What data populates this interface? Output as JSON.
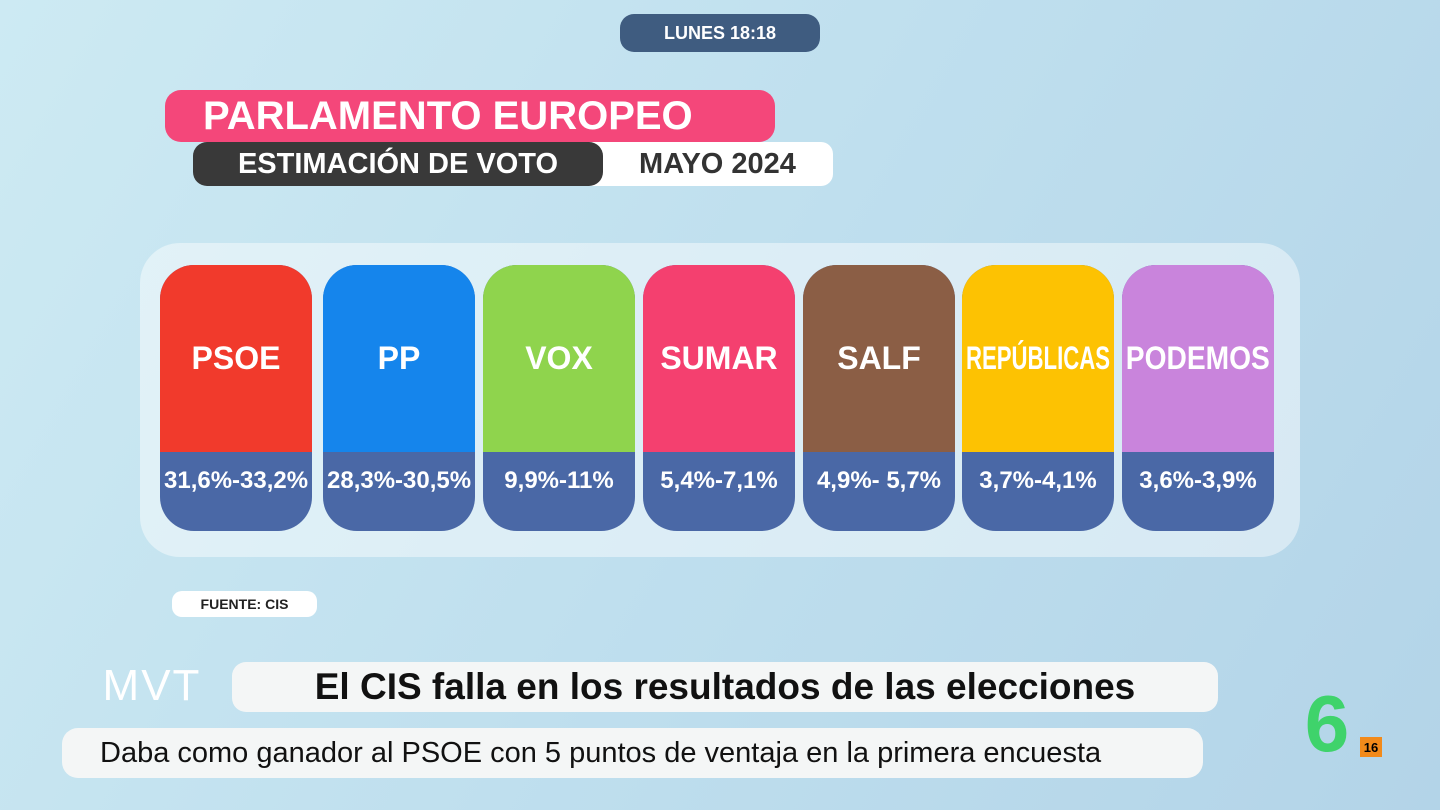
{
  "clock": "LUNES 18:18",
  "header": {
    "title": "PARLAMENTO EUROPEO",
    "subtitle": "ESTIMACIÓN DE VOTO",
    "date": "MAYO 2024"
  },
  "parties": [
    {
      "name": "PSOE",
      "range": "31,6%-33,2%",
      "color": "#f13a2c"
    },
    {
      "name": "PP",
      "range": "28,3%-30,5%",
      "color": "#1585ec"
    },
    {
      "name": "VOX",
      "range": "9,9%-11%",
      "color": "#8fd44d"
    },
    {
      "name": "SUMAR",
      "range": "5,4%-7,1%",
      "color": "#f4406f"
    },
    {
      "name": "SALF",
      "range": "4,9%- 5,7%",
      "color": "#8b5e45"
    },
    {
      "name": "REPÚBLICAS",
      "range": "3,7%-4,1%",
      "color": "#fdc202"
    },
    {
      "name": "PODEMOS",
      "range": "3,6%-3,9%",
      "color": "#c984dc"
    }
  ],
  "source": "FUENTE: CIS",
  "ticker": {
    "brand": "MVT",
    "headline": "El CIS falla en los resultados de las elecciones",
    "subheadline": "Daba como ganador al PSOE con 5 puntos de ventaja en la primera encuesta"
  },
  "channel": {
    "logo": "6",
    "rating": "16"
  }
}
